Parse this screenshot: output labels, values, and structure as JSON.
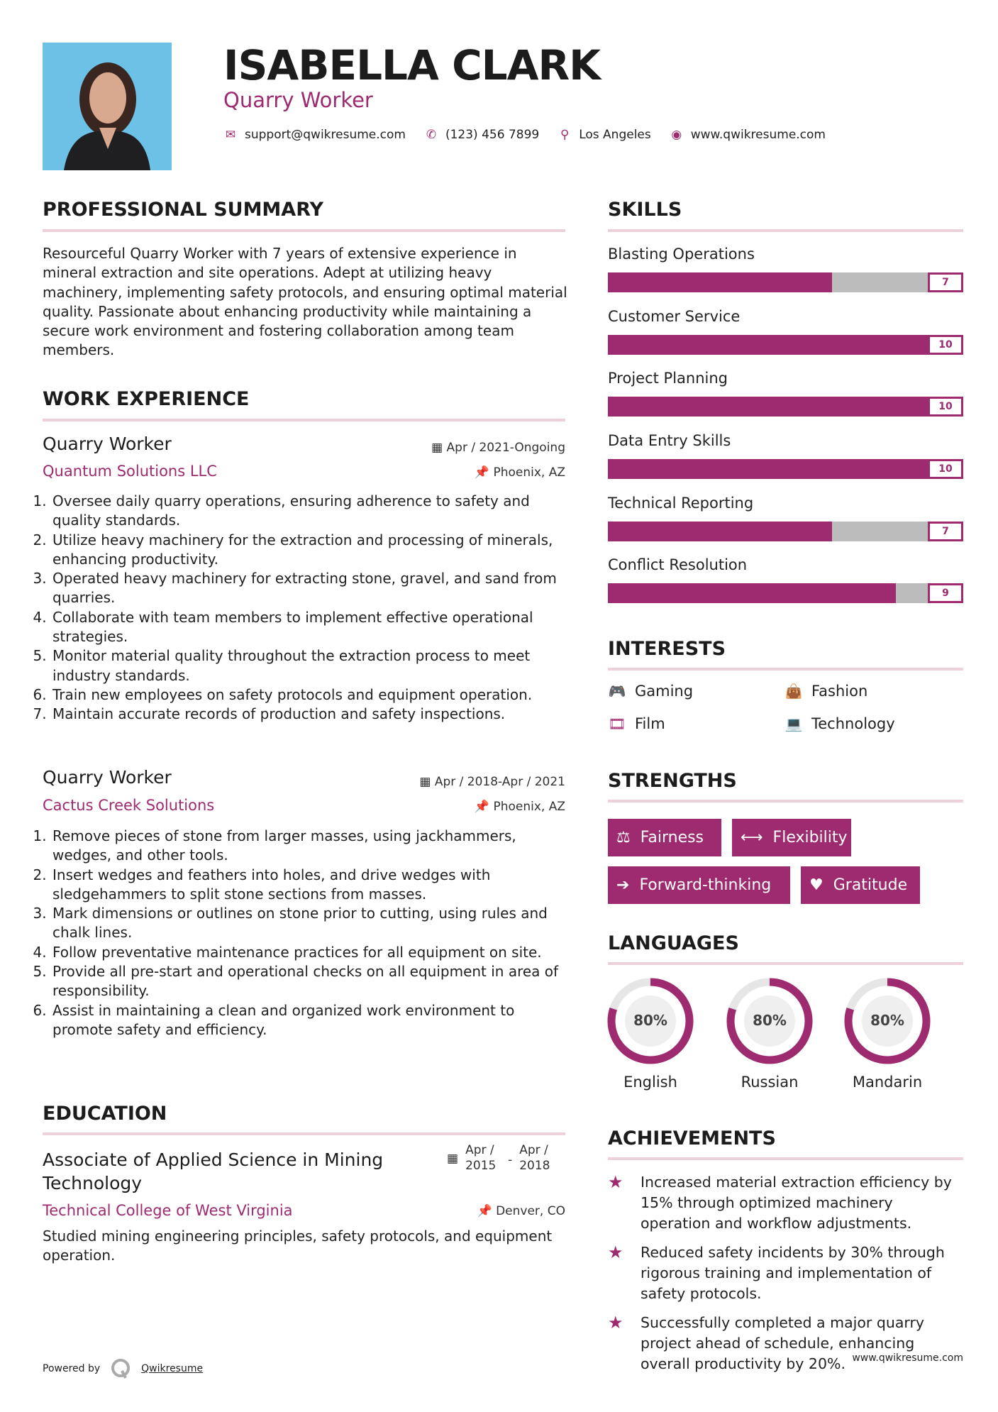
{
  "header": {
    "name": "ISABELLA CLARK",
    "title": "Quarry Worker",
    "contact": [
      {
        "icon": "envelope-icon",
        "glyph": "✉",
        "text": "support@qwikresume.com"
      },
      {
        "icon": "phone-icon",
        "glyph": "✆",
        "text": "(123) 456 7899"
      },
      {
        "icon": "map-marker-icon",
        "glyph": "⚲",
        "text": "Los Angeles"
      },
      {
        "icon": "globe-icon",
        "glyph": "◉",
        "text": "www.qwikresume.com"
      }
    ]
  },
  "colors": {
    "accent": "#9e2a6f",
    "rule": "#ecd0dc",
    "track": "#bcbcbc",
    "photo_bg": "#6ec1e6"
  },
  "summary": {
    "heading": "PROFESSIONAL SUMMARY",
    "text": "Resourceful Quarry Worker with 7 years of extensive experience in mineral extraction and site operations. Adept at utilizing heavy machinery, implementing safety protocols, and ensuring optimal material quality. Passionate about enhancing productivity while maintaining a secure work environment and fostering collaboration among team members."
  },
  "experience": {
    "heading": "WORK EXPERIENCE",
    "jobs": [
      {
        "title": "Quarry Worker",
        "company": "Quantum Solutions LLC",
        "dates": "Apr / 2021-Ongoing",
        "location": "Phoenix, AZ",
        "bullets": [
          "Oversee daily quarry operations, ensuring adherence to safety and quality standards.",
          "Utilize heavy machinery for the extraction and processing of minerals, enhancing productivity.",
          "Operated heavy machinery for extracting stone, gravel, and sand from quarries.",
          "Collaborate with team members to implement effective operational strategies.",
          "Monitor material quality throughout the extraction process to meet industry standards.",
          "Train new employees on safety protocols and equipment operation.",
          "Maintain accurate records of production and safety inspections."
        ]
      },
      {
        "title": "Quarry Worker",
        "company": "Cactus Creek Solutions",
        "dates": "Apr / 2018-Apr / 2021",
        "location": "Phoenix, AZ",
        "bullets": [
          "Remove pieces of stone from larger masses, using jackhammers, wedges, and other tools.",
          "Insert wedges and feathers into holes, and drive wedges with sledgehammers to split stone sections from masses.",
          "Mark dimensions or outlines on stone prior to cutting, using rules and chalk lines.",
          "Follow preventative maintenance practices for all equipment on site.",
          "Provide all pre-start and operational checks on all equipment in area of responsibility.",
          "Assist in maintaining a clean and organized work environment to promote safety and efficiency."
        ]
      }
    ]
  },
  "education": {
    "heading": "EDUCATION",
    "degree": "Associate of Applied Science in Mining Technology",
    "school": "Technical College of West Virginia",
    "start": "Apr / 2015",
    "end": "Apr / 2018",
    "separator": "-",
    "location": "Denver, CO",
    "description": "Studied mining engineering principles, safety protocols, and equipment operation."
  },
  "skills": {
    "heading": "SKILLS",
    "max": 10,
    "items": [
      {
        "name": "Blasting Operations",
        "value": 7
      },
      {
        "name": "Customer Service",
        "value": 10
      },
      {
        "name": "Project Planning",
        "value": 10
      },
      {
        "name": "Data Entry Skills",
        "value": 10
      },
      {
        "name": "Technical Reporting",
        "value": 7
      },
      {
        "name": "Conflict Resolution",
        "value": 9
      }
    ]
  },
  "interests": {
    "heading": "INTERESTS",
    "items": [
      {
        "name": "Gaming",
        "icon": "gamepad-icon",
        "glyph": "🎮"
      },
      {
        "name": "Fashion",
        "icon": "shopping-bag-icon",
        "glyph": "👜"
      },
      {
        "name": "Film",
        "icon": "film-icon",
        "glyph": "🎞"
      },
      {
        "name": "Technology",
        "icon": "laptop-icon",
        "glyph": "💻"
      }
    ]
  },
  "strengths": {
    "heading": "STRENGTHS",
    "items": [
      {
        "name": "Fairness",
        "icon": "balance-scale-icon",
        "glyph": "⚖"
      },
      {
        "name": "Flexibility",
        "icon": "arrows-horizontal-icon",
        "glyph": "⟷"
      },
      {
        "name": "Forward-thinking",
        "icon": "arrow-right-icon",
        "glyph": "➔"
      },
      {
        "name": "Gratitude",
        "icon": "heart-icon",
        "glyph": "♥"
      }
    ]
  },
  "languages": {
    "heading": "LANGUAGES",
    "items": [
      {
        "name": "English",
        "percent": 80,
        "label": "80%"
      },
      {
        "name": "Russian",
        "percent": 80,
        "label": "80%"
      },
      {
        "name": "Mandarin",
        "percent": 80,
        "label": "80%"
      }
    ]
  },
  "achievements": {
    "heading": "ACHIEVEMENTS",
    "icon": "shooting-star-icon",
    "items": [
      "Increased material extraction efficiency by 15% through optimized machinery operation and workflow adjustments.",
      "Reduced safety incidents by 30% through rigorous training and implementation of safety protocols.",
      "Successfully completed a major quarry project ahead of schedule, enhancing overall productivity by 20%."
    ]
  },
  "footer": {
    "powered_by": "Powered by",
    "brand": "Qwikresume",
    "website": "www.qwikresume.com"
  }
}
